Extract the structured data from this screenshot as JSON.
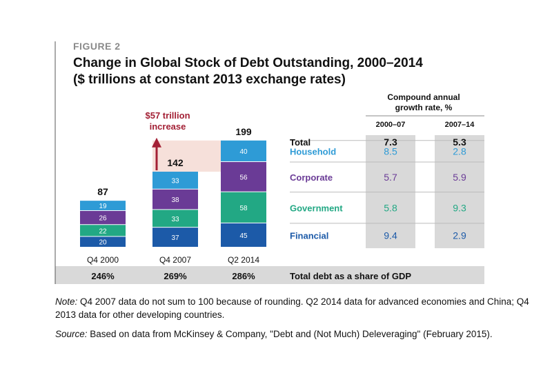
{
  "figure_label": "FIGURE 2",
  "title_line1": "Change in Global Stock of Debt Outstanding, 2000–2014",
  "title_line2": "($ trillions at constant 2013 exchange rates)",
  "colors": {
    "household": "#2e9bd6",
    "corporate": "#6a3b96",
    "government": "#22a884",
    "financial": "#1c5aa8",
    "increase_arrow": "#a32035",
    "increase_band": "#f6e0da",
    "gdp_band": "#d9d9d9",
    "growth_col_bg": "#d9d9d9"
  },
  "chart_data": {
    "type": "bar",
    "stacked": true,
    "categories": [
      "Q4 2000",
      "Q4 2007",
      "Q2 2014"
    ],
    "series": [
      {
        "name": "Financial",
        "values": [
          20,
          37,
          45
        ]
      },
      {
        "name": "Government",
        "values": [
          22,
          33,
          58
        ]
      },
      {
        "name": "Corporate",
        "values": [
          26,
          38,
          56
        ]
      },
      {
        "name": "Household",
        "values": [
          19,
          33,
          40
        ]
      }
    ],
    "totals": [
      87,
      142,
      199
    ],
    "total_label": "Total",
    "gdp_share_label": "Total debt as a share of GDP",
    "gdp_share": [
      "246%",
      "269%",
      "286%"
    ],
    "increase_annotation": [
      "$57 trillion",
      "increase"
    ],
    "growth_table": {
      "header": [
        "Compound annual",
        "growth rate, %"
      ],
      "columns": [
        "2000–07",
        "2007–14"
      ],
      "rows": [
        {
          "label": "Total",
          "values": [
            "7.3",
            "5.3"
          ]
        },
        {
          "label": "Household",
          "values": [
            "8.5",
            "2.8"
          ]
        },
        {
          "label": "Corporate",
          "values": [
            "5.7",
            "5.9"
          ]
        },
        {
          "label": "Government",
          "values": [
            "5.8",
            "9.3"
          ]
        },
        {
          "label": "Financial",
          "values": [
            "9.4",
            "2.9"
          ]
        }
      ]
    }
  },
  "note_label": "Note:",
  "note_text": " Q4 2007 data do not sum to 100 because of rounding. Q2 2014 data for advanced economies and China; Q4 2013 data for other developing countries.",
  "source_label": "Source:",
  "source_text": " Based on data from McKinsey & Company, \"Debt and (Not Much) Deleveraging\" (February 2015)."
}
